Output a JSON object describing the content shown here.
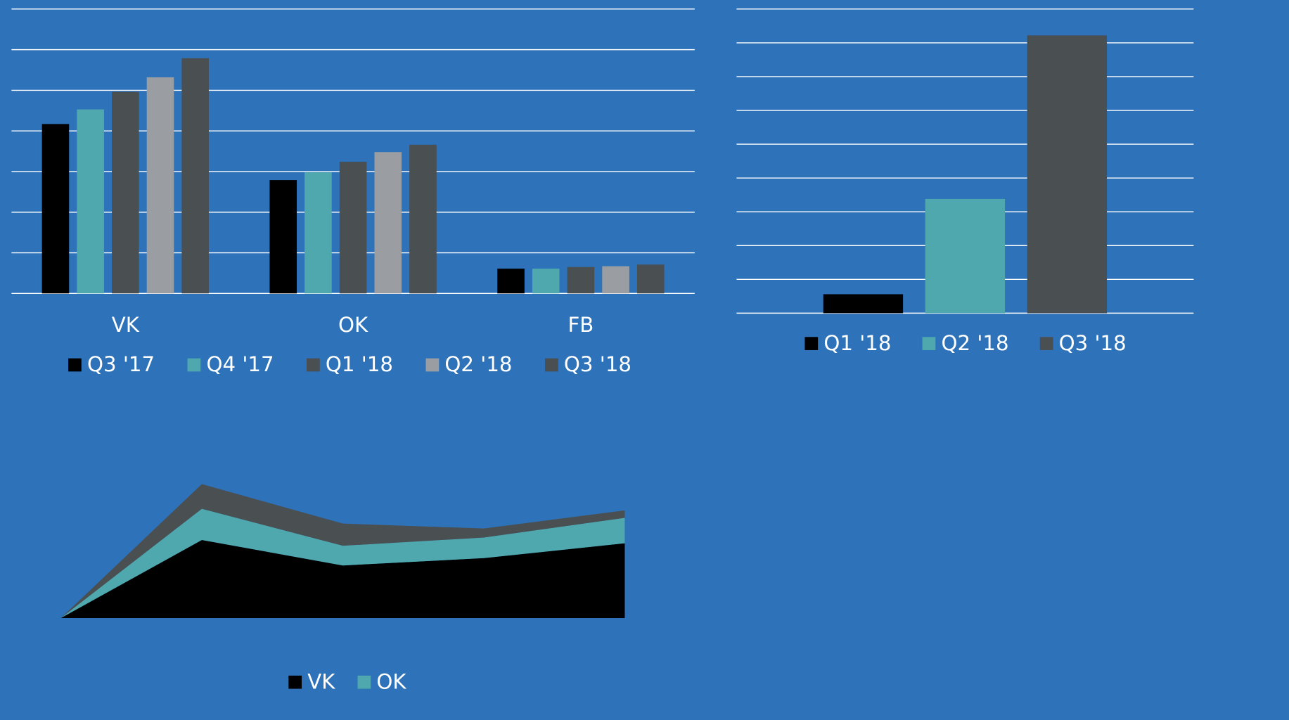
{
  "chart_data": [
    {
      "type": "bar",
      "categories": [
        "VK",
        "OK",
        "FB"
      ],
      "series": [
        {
          "name": "Q3 '17",
          "color": "#000000",
          "values": [
            4.17,
            2.79,
            0.61
          ]
        },
        {
          "name": "Q4 '17",
          "color": "#4fa8ad",
          "values": [
            4.53,
            2.98,
            0.61
          ]
        },
        {
          "name": "Q1 '18",
          "color": "#4a4f52",
          "values": [
            4.96,
            3.24,
            0.65
          ]
        },
        {
          "name": "Q2 '18",
          "color": "#9a9ea2",
          "values": [
            5.32,
            3.48,
            0.67
          ]
        },
        {
          "name": "Q3 '18",
          "color": "#4a4f52",
          "values": [
            5.79,
            3.66,
            0.71
          ]
        }
      ],
      "ylim": [
        0,
        7
      ],
      "yticks": [
        0,
        1,
        2,
        3,
        4,
        5,
        6,
        7
      ],
      "grid": true,
      "legend": "bottom"
    },
    {
      "type": "bar",
      "categories": [
        null
      ],
      "series": [
        {
          "name": "Q1 '18",
          "color": "#000000",
          "values": [
            0.56
          ]
        },
        {
          "name": "Q2 '18",
          "color": "#4fa8ad",
          "values": [
            3.38
          ]
        },
        {
          "name": "Q3 '18",
          "color": "#4a4f52",
          "values": [
            8.22
          ]
        }
      ],
      "ylim": [
        0,
        9
      ],
      "yticks": [
        0,
        1,
        2,
        3,
        4,
        5,
        6,
        7,
        8,
        9
      ],
      "grid": true,
      "legend": "bottom"
    },
    {
      "type": "area",
      "categories": [
        null,
        null,
        null,
        null,
        null
      ],
      "series": [
        {
          "name": "VK",
          "color": "#000000",
          "values": [
            0,
            95,
            64,
            73,
            91
          ]
        },
        {
          "name": "OK",
          "color": "#4fa8ad",
          "values": [
            0,
            38,
            24,
            25,
            31
          ]
        },
        {
          "color": "#4a4f52",
          "values": [
            0,
            30,
            27,
            11,
            9
          ]
        }
      ],
      "ylim": [
        0,
        170
      ],
      "grid": false,
      "legend": "bottom"
    }
  ]
}
